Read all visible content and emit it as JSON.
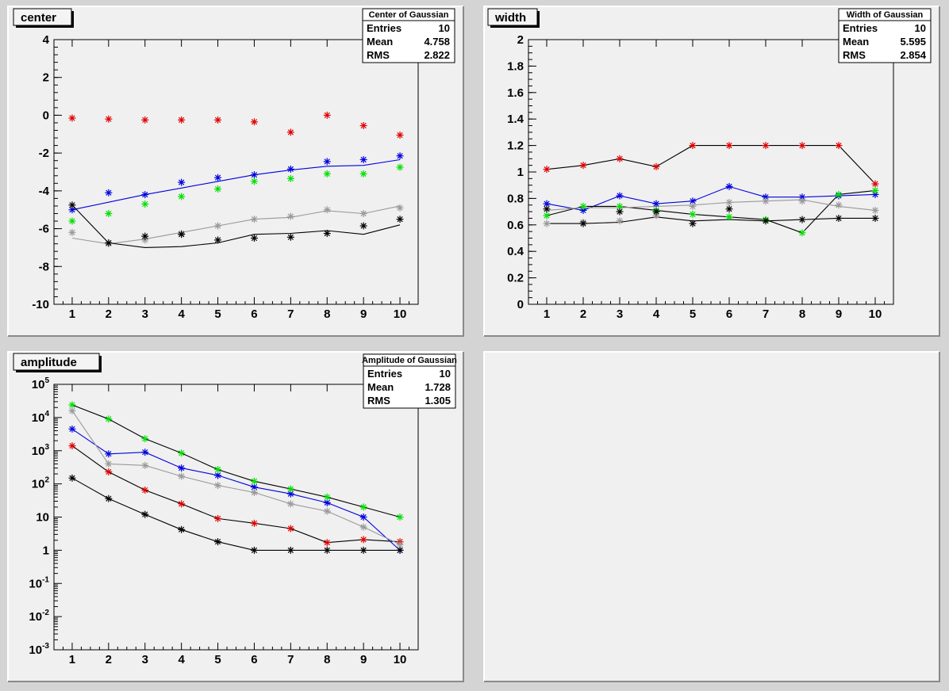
{
  "chart_data": [
    {
      "type": "scatter",
      "title": "center",
      "stats": {
        "title": "Center of Gaussian",
        "rows": [
          [
            "Entries",
            "10"
          ],
          [
            "Mean",
            "4.758"
          ],
          [
            "RMS",
            "2.822"
          ]
        ]
      },
      "x_ticks": [
        "1",
        "2",
        "3",
        "4",
        "5",
        "6",
        "7",
        "8",
        "9",
        "10"
      ],
      "xlim": [
        0.5,
        10.5
      ],
      "ylim": [
        -10,
        4
      ],
      "y_ticks": [
        {
          "v": -10,
          "label": "-10"
        },
        {
          "v": -8,
          "label": "-8"
        },
        {
          "v": -6,
          "label": "-6"
        },
        {
          "v": -4,
          "label": "-4"
        },
        {
          "v": -2,
          "label": "-2"
        },
        {
          "v": 0,
          "label": "0"
        },
        {
          "v": 2,
          "label": "2"
        },
        {
          "v": 4,
          "label": "4"
        }
      ],
      "y_minor_step": 0.4,
      "series": [
        {
          "color": "#e00000",
          "markers": [
            -0.15,
            -0.2,
            -0.25,
            -0.25,
            -0.25,
            -0.35,
            -0.9,
            0,
            -0.55,
            -1.05
          ]
        },
        {
          "color": "#0000e0",
          "markers": [
            -5.0,
            -4.1,
            -4.2,
            -3.55,
            -3.3,
            -3.15,
            -2.85,
            -2.45,
            -2.35,
            -2.15
          ],
          "line": [
            -5.0,
            -4.6,
            -4.2,
            -3.85,
            -3.5,
            -3.15,
            -2.9,
            -2.7,
            -2.65,
            -2.35
          ]
        },
        {
          "color": "#00e000",
          "markers": [
            -5.6,
            -5.2,
            -4.7,
            -4.3,
            -3.9,
            -3.5,
            -3.35,
            -3.1,
            -3.1,
            -2.75
          ]
        },
        {
          "color": "#999999",
          "markers": [
            -6.2,
            -6.8,
            -6.6,
            -6.25,
            -5.85,
            -5.5,
            -5.35,
            -5.0,
            -5.2,
            -4.9
          ],
          "line": [
            -6.5,
            -6.8,
            -6.55,
            -6.2,
            -5.85,
            -5.5,
            -5.4,
            -5.05,
            -5.2,
            -4.8
          ]
        },
        {
          "color": "#000000",
          "markers": [
            -4.75,
            -6.75,
            -6.4,
            -6.3,
            -6.6,
            -6.5,
            -6.45,
            -6.25,
            -5.85,
            -5.5
          ],
          "line": [
            -4.75,
            -6.75,
            -7.0,
            -6.95,
            -6.75,
            -6.3,
            -6.25,
            -6.1,
            -6.3,
            -5.8
          ]
        }
      ]
    },
    {
      "type": "line",
      "title": "width",
      "stats": {
        "title": "Width of Gaussian",
        "rows": [
          [
            "Entries",
            "10"
          ],
          [
            "Mean",
            "5.595"
          ],
          [
            "RMS",
            "2.854"
          ]
        ]
      },
      "x_ticks": [
        "1",
        "2",
        "3",
        "4",
        "5",
        "6",
        "7",
        "8",
        "9",
        "10"
      ],
      "xlim": [
        0.5,
        10.5
      ],
      "ylim": [
        0,
        2
      ],
      "y_ticks": [
        {
          "v": 0,
          "label": "0"
        },
        {
          "v": 0.2,
          "label": "0.2"
        },
        {
          "v": 0.4,
          "label": "0.4"
        },
        {
          "v": 0.6,
          "label": "0.6"
        },
        {
          "v": 0.8,
          "label": "0.8"
        },
        {
          "v": 1.0,
          "label": "1"
        },
        {
          "v": 1.2,
          "label": "1.2"
        },
        {
          "v": 1.4,
          "label": "1.4"
        },
        {
          "v": 1.6,
          "label": "1.6"
        },
        {
          "v": 1.8,
          "label": "1.8"
        },
        {
          "v": 2.0,
          "label": "2"
        }
      ],
      "y_minor_step": 0.05,
      "series": [
        {
          "color": "#e00000",
          "markers": [
            1.02,
            1.05,
            1.1,
            1.04,
            1.2,
            1.2,
            1.2,
            1.2,
            1.2,
            0.91
          ],
          "line": [
            1.02,
            1.05,
            1.1,
            1.04,
            1.2,
            1.2,
            1.2,
            1.2,
            1.2,
            0.91
          ]
        },
        {
          "color": "#0000e0",
          "markers": [
            0.76,
            0.71,
            0.82,
            0.76,
            0.78,
            0.89,
            0.81,
            0.81,
            0.82,
            0.83
          ],
          "line": [
            0.76,
            0.71,
            0.82,
            0.76,
            0.78,
            0.89,
            0.81,
            0.81,
            0.82,
            0.83
          ]
        },
        {
          "color": "#00e000",
          "markers": [
            0.67,
            0.74,
            0.74,
            0.71,
            0.68,
            0.66,
            0.64,
            0.54,
            0.83,
            0.86
          ],
          "line": [
            0.67,
            0.74,
            0.74,
            0.71,
            0.68,
            0.66,
            0.64,
            0.54,
            0.83,
            0.86
          ]
        },
        {
          "color": "#999999",
          "markers": [
            0.61,
            0.62,
            0.63,
            0.67,
            0.74,
            0.77,
            0.78,
            0.78,
            0.75,
            0.71
          ],
          "line": [
            0.71,
            0.73,
            0.73,
            0.74,
            0.75,
            0.77,
            0.78,
            0.79,
            0.74,
            0.71
          ]
        },
        {
          "color": "#000000",
          "markers": [
            0.72,
            0.61,
            0.7,
            0.7,
            0.61,
            0.72,
            0.63,
            0.64,
            0.65,
            0.65
          ],
          "line": [
            0.61,
            0.61,
            0.62,
            0.66,
            0.63,
            0.64,
            0.63,
            0.64,
            0.65,
            0.65
          ]
        }
      ]
    },
    {
      "type": "line",
      "title": "amplitude",
      "log_y": true,
      "stats": {
        "title": "Amplitude of Gaussian",
        "rows": [
          [
            "Entries",
            "10"
          ],
          [
            "Mean",
            "1.728"
          ],
          [
            "RMS",
            "1.305"
          ]
        ]
      },
      "x_ticks": [
        "1",
        "2",
        "3",
        "4",
        "5",
        "6",
        "7",
        "8",
        "9",
        "10"
      ],
      "xlim": [
        0.5,
        10.5
      ],
      "ylim": [
        0.001,
        100000
      ],
      "y_ticks": [
        {
          "v": 0.001,
          "base": "10",
          "exp": "-3"
        },
        {
          "v": 0.01,
          "base": "10",
          "exp": "-2"
        },
        {
          "v": 0.1,
          "base": "10",
          "exp": "-1"
        },
        {
          "v": 1,
          "label": "1"
        },
        {
          "v": 10,
          "label": "10"
        },
        {
          "v": 100,
          "base": "10",
          "exp": "2"
        },
        {
          "v": 1000,
          "base": "10",
          "exp": "3"
        },
        {
          "v": 10000,
          "base": "10",
          "exp": "4"
        },
        {
          "v": 100000,
          "base": "10",
          "exp": "5"
        }
      ],
      "series": [
        {
          "color": "#e00000",
          "markers": [
            1400,
            230,
            65,
            25,
            9,
            6.5,
            4.5,
            1.7,
            2.1,
            1.8
          ],
          "line": [
            1400,
            230,
            65,
            25,
            9,
            6.5,
            4.5,
            1.7,
            2.1,
            1.8
          ]
        },
        {
          "color": "#0000e0",
          "markers": [
            4500,
            800,
            900,
            300,
            180,
            80,
            50,
            27,
            10,
            1
          ],
          "line": [
            4500,
            800,
            900,
            300,
            180,
            80,
            50,
            27,
            10,
            1
          ]
        },
        {
          "color": "#00e000",
          "markers": [
            24000,
            9000,
            2300,
            850,
            270,
            120,
            70,
            40,
            20,
            10
          ],
          "line": [
            24000,
            9000,
            2300,
            850,
            270,
            120,
            70,
            40,
            20,
            10
          ]
        },
        {
          "color": "#999999",
          "markers": [
            16000,
            400,
            360,
            170,
            90,
            55,
            25,
            15,
            5,
            1.5
          ],
          "line": [
            16000,
            400,
            360,
            170,
            90,
            55,
            25,
            15,
            5,
            1.5
          ]
        },
        {
          "color": "#000000",
          "markers": [
            150,
            36,
            12,
            4.2,
            1.8,
            1,
            1,
            1,
            1,
            1
          ],
          "line": [
            150,
            36,
            12,
            4.2,
            1.8,
            1,
            1,
            1,
            1,
            1
          ]
        }
      ]
    }
  ]
}
